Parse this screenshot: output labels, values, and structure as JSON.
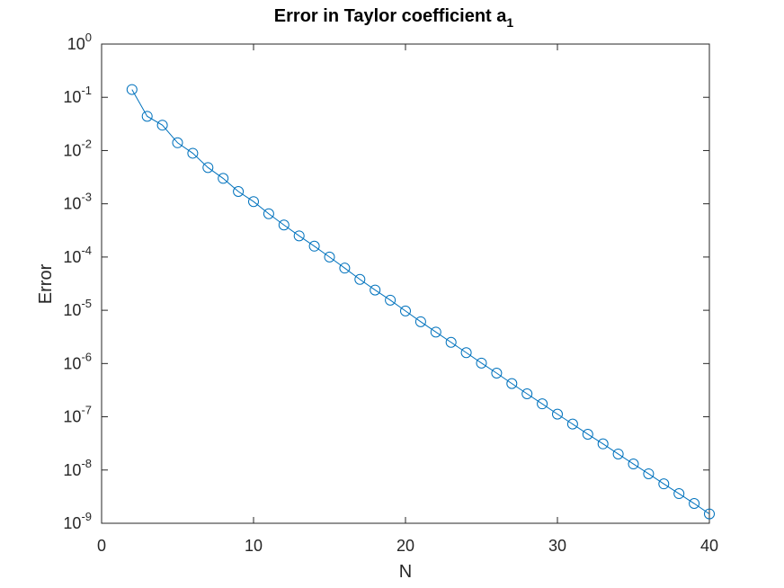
{
  "chart_data": {
    "type": "line",
    "title": "Error in Taylor coefficient a",
    "title_subscript": "1",
    "xlabel": "N",
    "ylabel": "Error",
    "xlim": [
      0,
      40
    ],
    "ylim": [
      1e-09,
      1
    ],
    "yscale": "log",
    "grid": false,
    "xticks": [
      0,
      10,
      20,
      30,
      40
    ],
    "yticks": [
      {
        "base": "10",
        "exp": "-9",
        "value": 1e-09
      },
      {
        "base": "10",
        "exp": "-8",
        "value": 1e-08
      },
      {
        "base": "10",
        "exp": "-7",
        "value": 1e-07
      },
      {
        "base": "10",
        "exp": "-6",
        "value": 1e-06
      },
      {
        "base": "10",
        "exp": "-5",
        "value": 1e-05
      },
      {
        "base": "10",
        "exp": "-4",
        "value": 0.0001
      },
      {
        "base": "10",
        "exp": "-3",
        "value": 0.001
      },
      {
        "base": "10",
        "exp": "-2",
        "value": 0.01
      },
      {
        "base": "10",
        "exp": "-1",
        "value": 0.1
      },
      {
        "base": "10",
        "exp": "0",
        "value": 1
      }
    ],
    "series": [
      {
        "color": "#0072BD",
        "marker": "circle",
        "x": [
          2,
          3,
          4,
          5,
          6,
          7,
          8,
          9,
          10,
          11,
          12,
          13,
          14,
          15,
          16,
          17,
          18,
          19,
          20,
          21,
          22,
          23,
          24,
          25,
          26,
          27,
          28,
          29,
          30,
          31,
          32,
          33,
          34,
          35,
          36,
          37,
          38,
          39,
          40
        ],
        "y": [
          0.14,
          0.044,
          0.03,
          0.014,
          0.0089,
          0.0048,
          0.003,
          0.0017,
          0.0011,
          0.00065,
          0.0004,
          0.00025,
          0.00016,
          0.0001,
          6.2e-05,
          3.8e-05,
          2.4e-05,
          1.55e-05,
          9.7e-06,
          6.1e-06,
          3.9e-06,
          2.5e-06,
          1.6e-06,
          1.02e-06,
          6.6e-07,
          4.2e-07,
          2.7e-07,
          1.75e-07,
          1.12e-07,
          7.3e-08,
          4.7e-08,
          3.1e-08,
          2e-08,
          1.3e-08,
          8.5e-09,
          5.5e-09,
          3.6e-09,
          2.35e-09,
          1.5e-09
        ]
      }
    ]
  }
}
